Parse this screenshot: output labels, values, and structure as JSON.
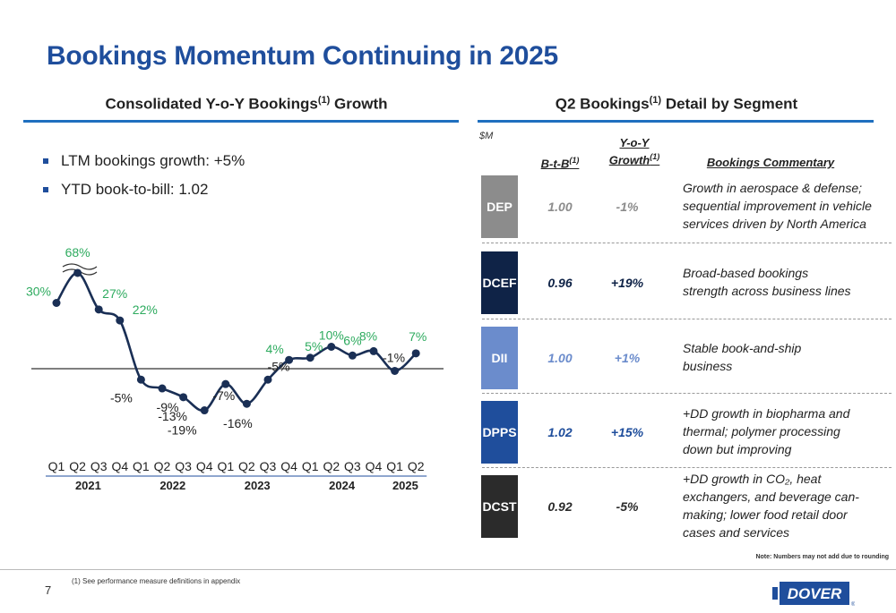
{
  "page": {
    "title": "Bookings Momentum Continuing in 2025",
    "page_number": "7",
    "footnote": "(1)   See performance measure definitions in appendix",
    "note": "Note: Numbers may not add due to rounding",
    "logo_text": "DOVER",
    "logo_mark": "®"
  },
  "left_section": {
    "heading": "Consolidated Y-o-Y Bookings",
    "heading_sup": "(1)",
    "heading_tail": " Growth",
    "bullets": [
      "LTM bookings growth: +5%",
      "YTD book-to-bill: 1.02"
    ]
  },
  "right_section": {
    "heading": "Q2 Bookings",
    "heading_sup": "(1)",
    "heading_tail": " Detail by Segment",
    "unit": "$M",
    "col_btb": "B-t-B",
    "col_btb_sup": "(1)",
    "col_yoy_1": "Y-o-Y",
    "col_yoy_2": "Growth",
    "col_yoy_sup": "(1)",
    "col_commentary": "Bookings Commentary",
    "segments": [
      {
        "name": "DEP",
        "btb": "1.00",
        "yoy": "-1%",
        "color": "#8c8c8c",
        "text_color": "#8c8c8c",
        "commentary": [
          "Growth in aerospace & defense;",
          "sequential improvement in vehicle",
          "services driven by North America"
        ]
      },
      {
        "name": "DCEF",
        "btb": "0.96",
        "yoy": "+19%",
        "color": "#0f2347",
        "text_color": "#0f2347",
        "commentary": [
          "Broad-based bookings",
          "strength across business lines"
        ]
      },
      {
        "name": "DII",
        "btb": "1.00",
        "yoy": "+1%",
        "color": "#6b8ccc",
        "text_color": "#6b8ccc",
        "commentary": [
          "Stable book-and-ship",
          "business"
        ]
      },
      {
        "name": "DPPS",
        "btb": "1.02",
        "yoy": "+15%",
        "color": "#1f4e9c",
        "text_color": "#1f4e9c",
        "commentary": [
          "+DD growth in biopharma and",
          "thermal; polymer processing",
          "down but improving"
        ]
      },
      {
        "name": "DCST",
        "btb": "0.92",
        "yoy": "-5%",
        "color": "#2b2b2b",
        "text_color": "#2b2b2b",
        "commentary": [
          "+DD growth in CO₂, heat",
          "exchangers, and beverage can-",
          "making; lower food retail door",
          "cases and services"
        ]
      }
    ]
  },
  "chart_data": {
    "type": "line",
    "x": [
      "Q1",
      "Q2",
      "Q3",
      "Q4",
      "Q1",
      "Q2",
      "Q3",
      "Q4",
      "Q1",
      "Q2",
      "Q3",
      "Q4",
      "Q1",
      "Q2",
      "Q3",
      "Q4",
      "Q1",
      "Q2"
    ],
    "years": [
      {
        "label": "2021",
        "quarters": 4
      },
      {
        "label": "2022",
        "quarters": 4
      },
      {
        "label": "2023",
        "quarters": 4
      },
      {
        "label": "2024",
        "quarters": 4
      },
      {
        "label": "2025",
        "quarters": 2
      }
    ],
    "values": [
      30,
      68,
      27,
      22,
      -5,
      -9,
      -13,
      -19,
      -7,
      -16,
      -5,
      4,
      5,
      10,
      6,
      8,
      -1,
      7
    ],
    "labels": [
      "30%",
      "68%",
      "27%",
      "22%",
      "-5%",
      "-9%",
      "-13%",
      "-19%",
      "-7%",
      "-16%",
      "-5%",
      "4%",
      "5%",
      "10%",
      "6%",
      "8%",
      "-1%",
      "7%"
    ],
    "axis_break": true,
    "positive_color": "#2eab5f",
    "negative_color": "#222222",
    "line_color": "#1a2f55"
  }
}
